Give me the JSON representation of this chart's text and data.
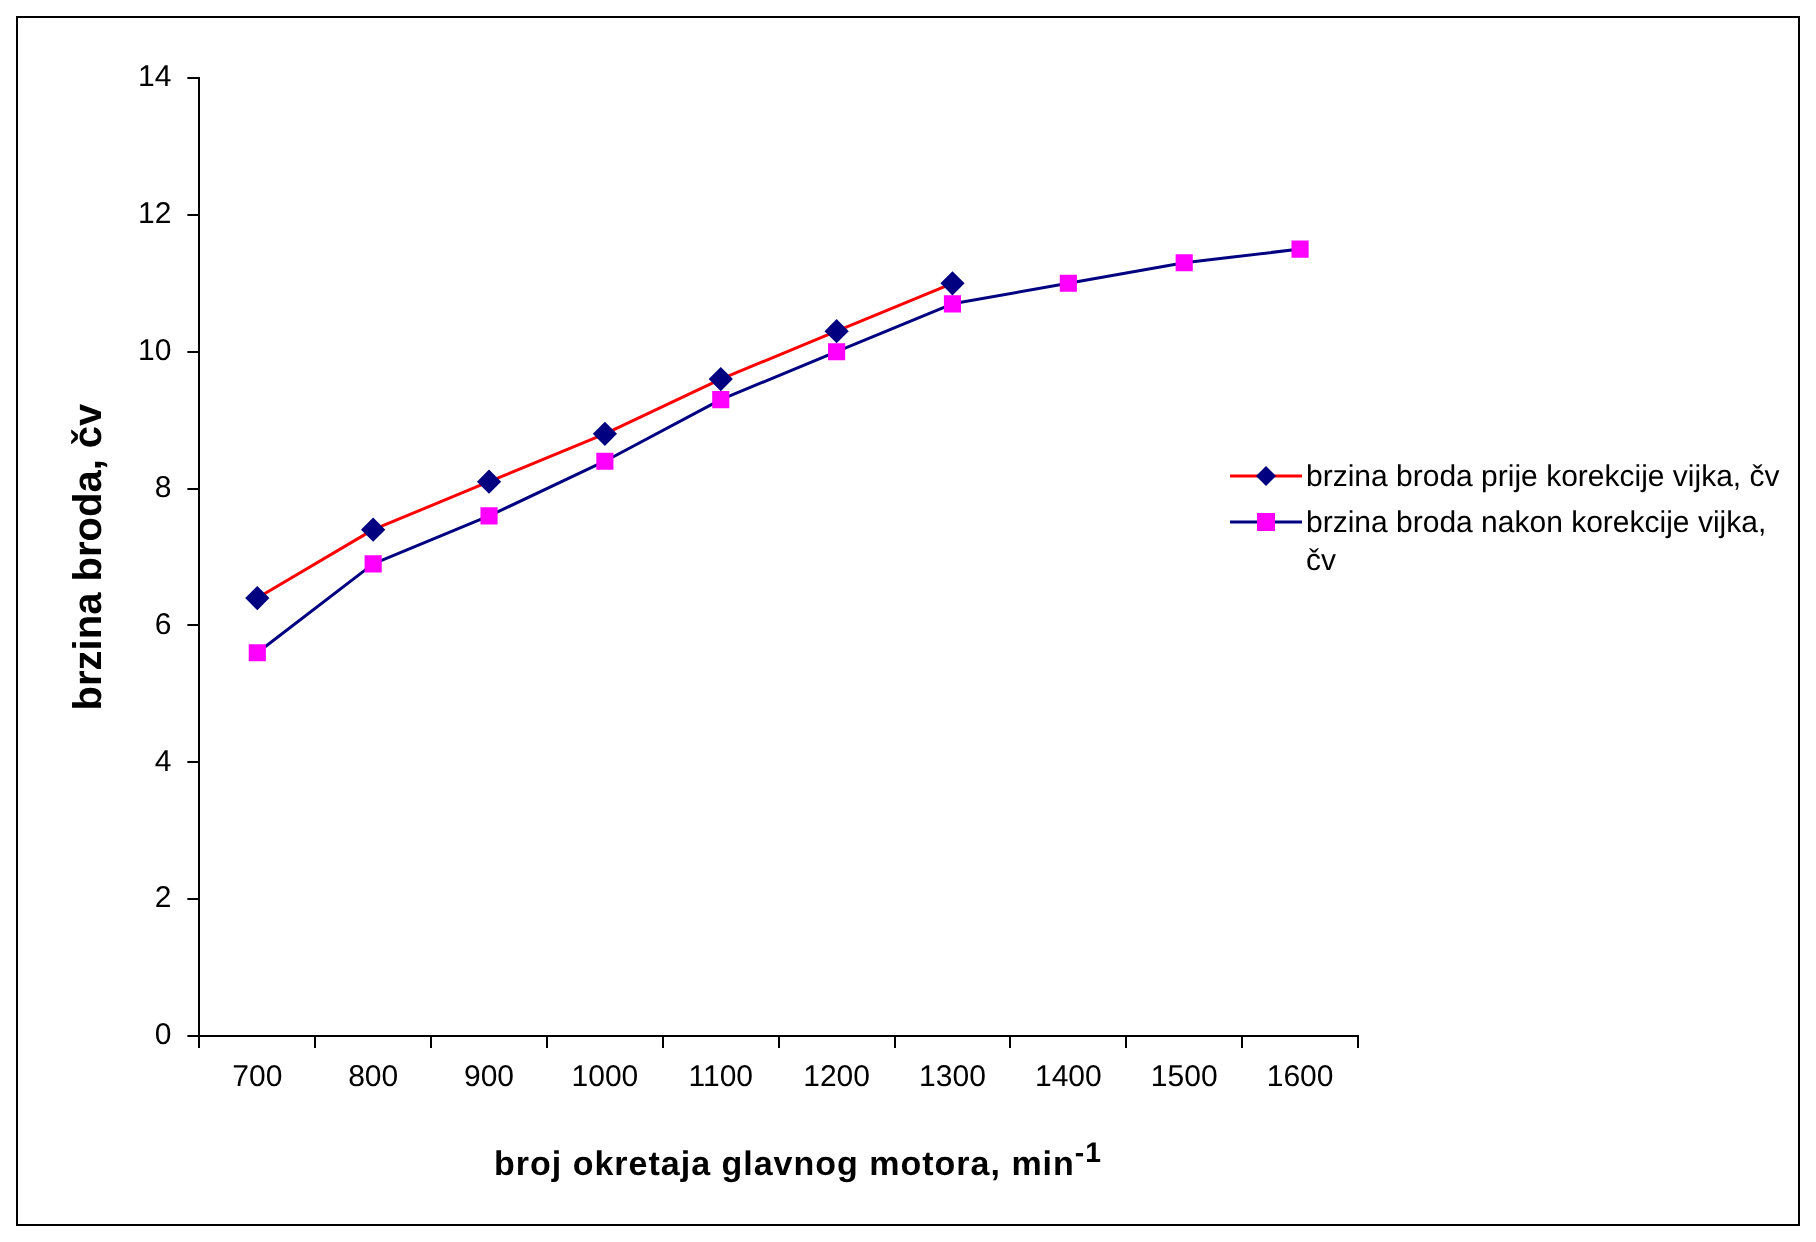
{
  "chart_data": {
    "type": "line",
    "xlabel": "broj okretaja glavnog motora, min$^{-1}$",
    "ylabel": "brzina broda, čv",
    "categories": [
      "700",
      "800",
      "900",
      "1000",
      "1100",
      "1200",
      "1300",
      "1400",
      "1500",
      "1600"
    ],
    "series": [
      {
        "name": "brzina broda prije korekcije vijka, čv",
        "color": "#ff0000",
        "marker": "diamond",
        "colors": [
          "#000080",
          "#000080",
          "#000080",
          "#000080",
          "#000080",
          "#000080",
          "#000080",
          "#000080",
          "#000080",
          "#000080"
        ],
        "values": [
          6.4,
          7.4,
          8.1,
          8.8,
          9.6,
          10.3,
          11.0,
          null,
          null,
          null
        ]
      },
      {
        "name": "brzina broda nakon korekcije vijka, čv",
        "color": "#000080",
        "marker": "square",
        "colors": [
          "#ff00ff",
          "#ff00ff",
          "#ff00ff",
          "#ff00ff",
          "#ff00ff",
          "#ff00ff",
          "#ff00ff",
          "#ff00ff",
          "#ff00ff",
          "#ff00ff"
        ],
        "values": [
          5.6,
          6.9,
          7.6,
          8.4,
          9.3,
          10.0,
          10.7,
          11.0,
          11.3,
          11.5
        ]
      }
    ],
    "ylim": [
      0,
      14
    ],
    "yticks": [
      0,
      2,
      4,
      6,
      8,
      10,
      12,
      14
    ],
    "grid": false,
    "legend": "right",
    "line_style": "solid"
  }
}
